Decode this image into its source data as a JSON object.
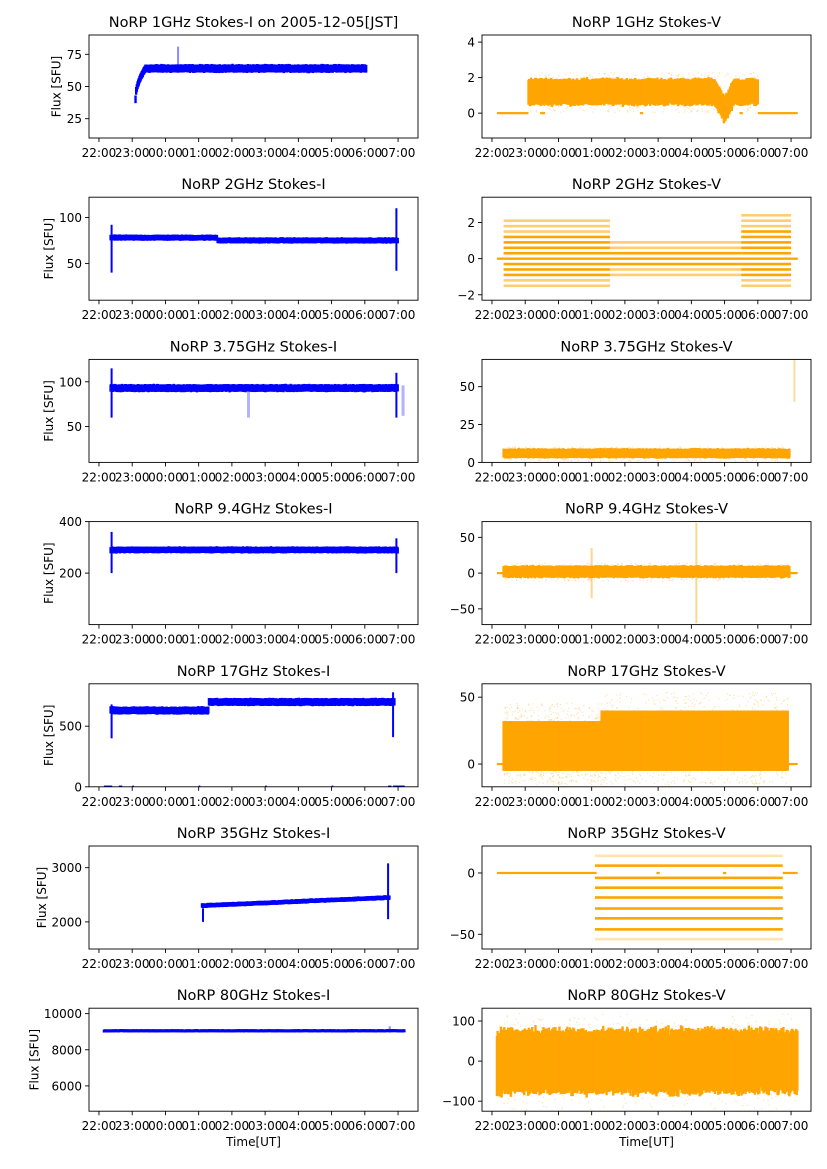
{
  "figure": {
    "x_label": "Time[UT]",
    "y_label": "Flux [SFU]",
    "colors": {
      "stokes_i": "#0000ff",
      "stokes_v": "#ffa500"
    }
  },
  "chart_data": [
    {
      "type": "scatter",
      "title": "NoRP 1GHz Stokes-I on 2005-12-05[JST]",
      "stokes": "I",
      "xlabel": "",
      "ylabel": "Flux [SFU]",
      "xticks": [
        "22:00",
        "23:00",
        "00:00",
        "01:00",
        "02:00",
        "03:00",
        "04:00",
        "05:00",
        "06:00",
        "07:00"
      ],
      "xlim_hours": [
        21.7,
        31.6
      ],
      "ylim": [
        10,
        90
      ],
      "yticks": [
        25,
        50,
        75
      ],
      "series": [
        {
          "name": "Stokes-I",
          "start": 23.1,
          "end": 30.05,
          "level": 64,
          "spread": 3,
          "rise_from": 40,
          "rise_end": 23.4,
          "spikes": [
            {
              "t": 24.38,
              "lo": 64,
              "hi": 81
            }
          ]
        }
      ]
    },
    {
      "type": "scatter",
      "title": "NoRP 1GHz Stokes-V",
      "stokes": "V",
      "xticks": [
        "22:00",
        "23:00",
        "00:00",
        "01:00",
        "02:00",
        "03:00",
        "04:00",
        "05:00",
        "06:00",
        "07:00"
      ],
      "xlim_hours": [
        21.7,
        31.6
      ],
      "ylim": [
        -1.4,
        4.4
      ],
      "yticks": [
        0,
        2,
        4
      ],
      "series": [
        {
          "name": "Stokes-V",
          "start": 23.1,
          "end": 30.0,
          "level": 1.2,
          "spread": 0.7,
          "zero_line": [
            [
              22.15,
              23.1
            ],
            [
              23.45,
              23.6
            ],
            [
              26.45,
              26.55
            ],
            [
              29.45,
              29.55
            ],
            [
              30.0,
              31.2
            ]
          ],
          "dip": {
            "t": 29.0,
            "value": 0.2
          }
        }
      ]
    },
    {
      "type": "scatter",
      "title": "NoRP 2GHz Stokes-I",
      "stokes": "I",
      "xticks": [
        "22:00",
        "23:00",
        "00:00",
        "01:00",
        "02:00",
        "03:00",
        "04:00",
        "05:00",
        "06:00",
        "07:00"
      ],
      "xlim_hours": [
        21.7,
        31.6
      ],
      "ylim": [
        10,
        122
      ],
      "yticks": [
        50,
        100
      ],
      "series": [
        {
          "name": "Stokes-I",
          "start": 22.35,
          "end": 31.0,
          "level": 77,
          "spread": 3,
          "start_spike": {
            "lo": 40,
            "hi": 92
          },
          "end_spike": {
            "lo": 42,
            "hi": 110
          },
          "step": {
            "t": 25.55,
            "before": 78,
            "after": 75
          }
        }
      ]
    },
    {
      "type": "scatter",
      "title": "NoRP 2GHz Stokes-V",
      "stokes": "V",
      "xticks": [
        "22:00",
        "23:00",
        "00:00",
        "01:00",
        "02:00",
        "03:00",
        "04:00",
        "05:00",
        "06:00",
        "07:00"
      ],
      "xlim_hours": [
        21.7,
        31.6
      ],
      "ylim": [
        -2.3,
        3.4
      ],
      "yticks": [
        -2,
        0,
        2
      ],
      "series": [
        {
          "name": "Stokes-V",
          "start": 22.35,
          "end": 31.0,
          "quantized_step": 0.3,
          "bands": [
            {
              "from": 22.35,
              "to": 25.55,
              "lo": -1.5,
              "hi": 2.1
            },
            {
              "from": 25.55,
              "to": 29.5,
              "lo": -0.9,
              "hi": 1.2
            },
            {
              "from": 29.5,
              "to": 31.0,
              "lo": -1.5,
              "hi": 2.4
            }
          ],
          "zero_line": [
            [
              22.15,
              31.2
            ]
          ]
        }
      ]
    },
    {
      "type": "scatter",
      "title": "NoRP 3.75GHz Stokes-I",
      "stokes": "I",
      "xticks": [
        "22:00",
        "23:00",
        "00:00",
        "01:00",
        "02:00",
        "03:00",
        "04:00",
        "05:00",
        "06:00",
        "07:00"
      ],
      "xlim_hours": [
        21.7,
        31.6
      ],
      "ylim": [
        10,
        125
      ],
      "yticks": [
        50,
        100
      ],
      "series": [
        {
          "name": "Stokes-I",
          "start": 22.35,
          "end": 31.0,
          "level": 93,
          "spread": 4,
          "start_spike": {
            "lo": 60,
            "hi": 115
          },
          "end_spike": {
            "lo": 60,
            "hi": 110
          },
          "dropouts": [
            {
              "t": 26.5,
              "lo": 60,
              "hi": 93
            },
            {
              "t": 31.15,
              "lo": 62,
              "hi": 96
            }
          ]
        }
      ]
    },
    {
      "type": "scatter",
      "title": "NoRP 3.75GHz Stokes-V",
      "stokes": "V",
      "xticks": [
        "22:00",
        "23:00",
        "00:00",
        "01:00",
        "02:00",
        "03:00",
        "04:00",
        "05:00",
        "06:00",
        "07:00"
      ],
      "xlim_hours": [
        21.7,
        31.6
      ],
      "ylim": [
        0,
        68
      ],
      "yticks": [
        0,
        25,
        50
      ],
      "series": [
        {
          "name": "Stokes-V",
          "start": 22.35,
          "end": 30.95,
          "level": 6,
          "spread": 3,
          "end_spike": {
            "t": 31.1,
            "lo": 40,
            "hi": 68
          }
        }
      ]
    },
    {
      "type": "scatter",
      "title": "NoRP 9.4GHz Stokes-I",
      "stokes": "I",
      "xticks": [
        "22:00",
        "23:00",
        "00:00",
        "01:00",
        "02:00",
        "03:00",
        "04:00",
        "05:00",
        "06:00",
        "07:00"
      ],
      "xlim_hours": [
        21.7,
        31.6
      ],
      "ylim": [
        0,
        400
      ],
      "yticks": [
        200,
        400
      ],
      "series": [
        {
          "name": "Stokes-I",
          "start": 22.35,
          "end": 31.0,
          "level": 290,
          "spread": 12,
          "start_spike": {
            "lo": 200,
            "hi": 360
          },
          "end_spike": {
            "lo": 200,
            "hi": 335
          }
        }
      ]
    },
    {
      "type": "scatter",
      "title": "NoRP 9.4GHz Stokes-V",
      "stokes": "V",
      "xticks": [
        "22:00",
        "23:00",
        "00:00",
        "01:00",
        "02:00",
        "03:00",
        "04:00",
        "05:00",
        "06:00",
        "07:00"
      ],
      "xlim_hours": [
        21.7,
        31.6
      ],
      "ylim": [
        -72,
        72
      ],
      "yticks": [
        -50,
        0,
        50
      ],
      "series": [
        {
          "name": "Stokes-V",
          "start": 22.35,
          "end": 30.95,
          "level": 2,
          "spread": 8,
          "spikes": [
            {
              "t": 25.0,
              "lo": -35,
              "hi": 35
            },
            {
              "t": 28.15,
              "lo": -70,
              "hi": 70
            }
          ],
          "zero_line": [
            [
              22.15,
              31.2
            ]
          ]
        }
      ]
    },
    {
      "type": "scatter",
      "title": "NoRP 17GHz Stokes-I",
      "stokes": "I",
      "xticks": [
        "22:00",
        "23:00",
        "00:00",
        "01:00",
        "02:00",
        "03:00",
        "04:00",
        "05:00",
        "06:00",
        "07:00"
      ],
      "xlim_hours": [
        21.7,
        31.6
      ],
      "ylim": [
        0,
        850
      ],
      "yticks": [
        0,
        500
      ],
      "series": [
        {
          "name": "Stokes-I",
          "start": 22.35,
          "end": 30.9,
          "level": 630,
          "spread": 30,
          "start_spike": {
            "lo": 400,
            "hi": 680
          },
          "end_spike": {
            "lo": 410,
            "hi": 780
          },
          "step": {
            "t": 25.3,
            "before": 630,
            "after": 700
          }
        }
      ]
    },
    {
      "type": "scatter",
      "title": "NoRP 17GHz Stokes-V",
      "stokes": "V",
      "xticks": [
        "22:00",
        "23:00",
        "00:00",
        "01:00",
        "02:00",
        "03:00",
        "04:00",
        "05:00",
        "06:00",
        "07:00"
      ],
      "xlim_hours": [
        21.7,
        31.6
      ],
      "ylim": [
        -17,
        60
      ],
      "yticks": [
        0,
        50
      ],
      "series": [
        {
          "name": "Stokes-V",
          "start": 22.35,
          "end": 30.9,
          "bands": [
            {
              "from": 22.35,
              "to": 25.3,
              "lo": -5,
              "hi": 32
            },
            {
              "from": 25.3,
              "to": 30.9,
              "lo": -5,
              "hi": 40
            }
          ],
          "zero_line": [
            [
              22.15,
              31.2
            ]
          ]
        }
      ]
    },
    {
      "type": "scatter",
      "title": "NoRP 35GHz Stokes-I",
      "stokes": "I",
      "xticks": [
        "22:00",
        "23:00",
        "00:00",
        "01:00",
        "02:00",
        "03:00",
        "04:00",
        "05:00",
        "06:00",
        "07:00"
      ],
      "xlim_hours": [
        21.7,
        31.6
      ],
      "ylim": [
        1500,
        3400
      ],
      "yticks": [
        2000,
        3000
      ],
      "series": [
        {
          "name": "Stokes-I",
          "start": 25.1,
          "end": 30.75,
          "level_start": 2300,
          "level_end": 2450,
          "spread": 40,
          "start_spike": {
            "lo": 2000,
            "hi": 2250
          },
          "end_spike": {
            "lo": 2050,
            "hi": 3080
          }
        }
      ]
    },
    {
      "type": "scatter",
      "title": "NoRP 35GHz Stokes-V",
      "stokes": "V",
      "xticks": [
        "22:00",
        "23:00",
        "00:00",
        "01:00",
        "02:00",
        "03:00",
        "04:00",
        "05:00",
        "06:00",
        "07:00"
      ],
      "xlim_hours": [
        21.7,
        31.6
      ],
      "ylim": [
        -62,
        22
      ],
      "yticks": [
        -50,
        0
      ],
      "series": [
        {
          "name": "Stokes-V",
          "start": 25.1,
          "end": 30.75,
          "levels": [
            14,
            6,
            -4,
            -12,
            -20,
            -29,
            -37,
            -46,
            -54
          ],
          "zero_line": [
            [
              22.15,
              25.15
            ],
            [
              26.95,
              27.05
            ],
            [
              28.95,
              29.05
            ],
            [
              30.75,
              31.2
            ]
          ]
        }
      ]
    },
    {
      "type": "scatter",
      "title": "NoRP 80GHz Stokes-I",
      "stokes": "I",
      "xticks": [
        "22:00",
        "23:00",
        "00:00",
        "01:00",
        "02:00",
        "03:00",
        "04:00",
        "05:00",
        "06:00",
        "07:00"
      ],
      "xlabel": "Time[UT]",
      "ylabel": "Flux [SFU]",
      "xlim_hours": [
        21.7,
        31.6
      ],
      "ylim": [
        4600,
        10300
      ],
      "yticks": [
        6000,
        8000,
        10000
      ],
      "series": [
        {
          "name": "Stokes-I",
          "start": 22.15,
          "end": 31.2,
          "level": 9050,
          "spread": 80,
          "spikes": [
            {
              "t": 30.75,
              "lo": 9050,
              "hi": 9300
            }
          ]
        }
      ]
    },
    {
      "type": "scatter",
      "title": "NoRP 80GHz Stokes-V",
      "stokes": "V",
      "xticks": [
        "22:00",
        "23:00",
        "00:00",
        "01:00",
        "02:00",
        "03:00",
        "04:00",
        "05:00",
        "06:00",
        "07:00"
      ],
      "xlabel": "Time[UT]",
      "xlim_hours": [
        21.7,
        31.6
      ],
      "ylim": [
        -125,
        132
      ],
      "yticks": [
        -100,
        0,
        100
      ],
      "series": [
        {
          "name": "Stokes-V",
          "start": 22.15,
          "end": 31.2,
          "level": 0,
          "spread": 75
        }
      ]
    }
  ]
}
